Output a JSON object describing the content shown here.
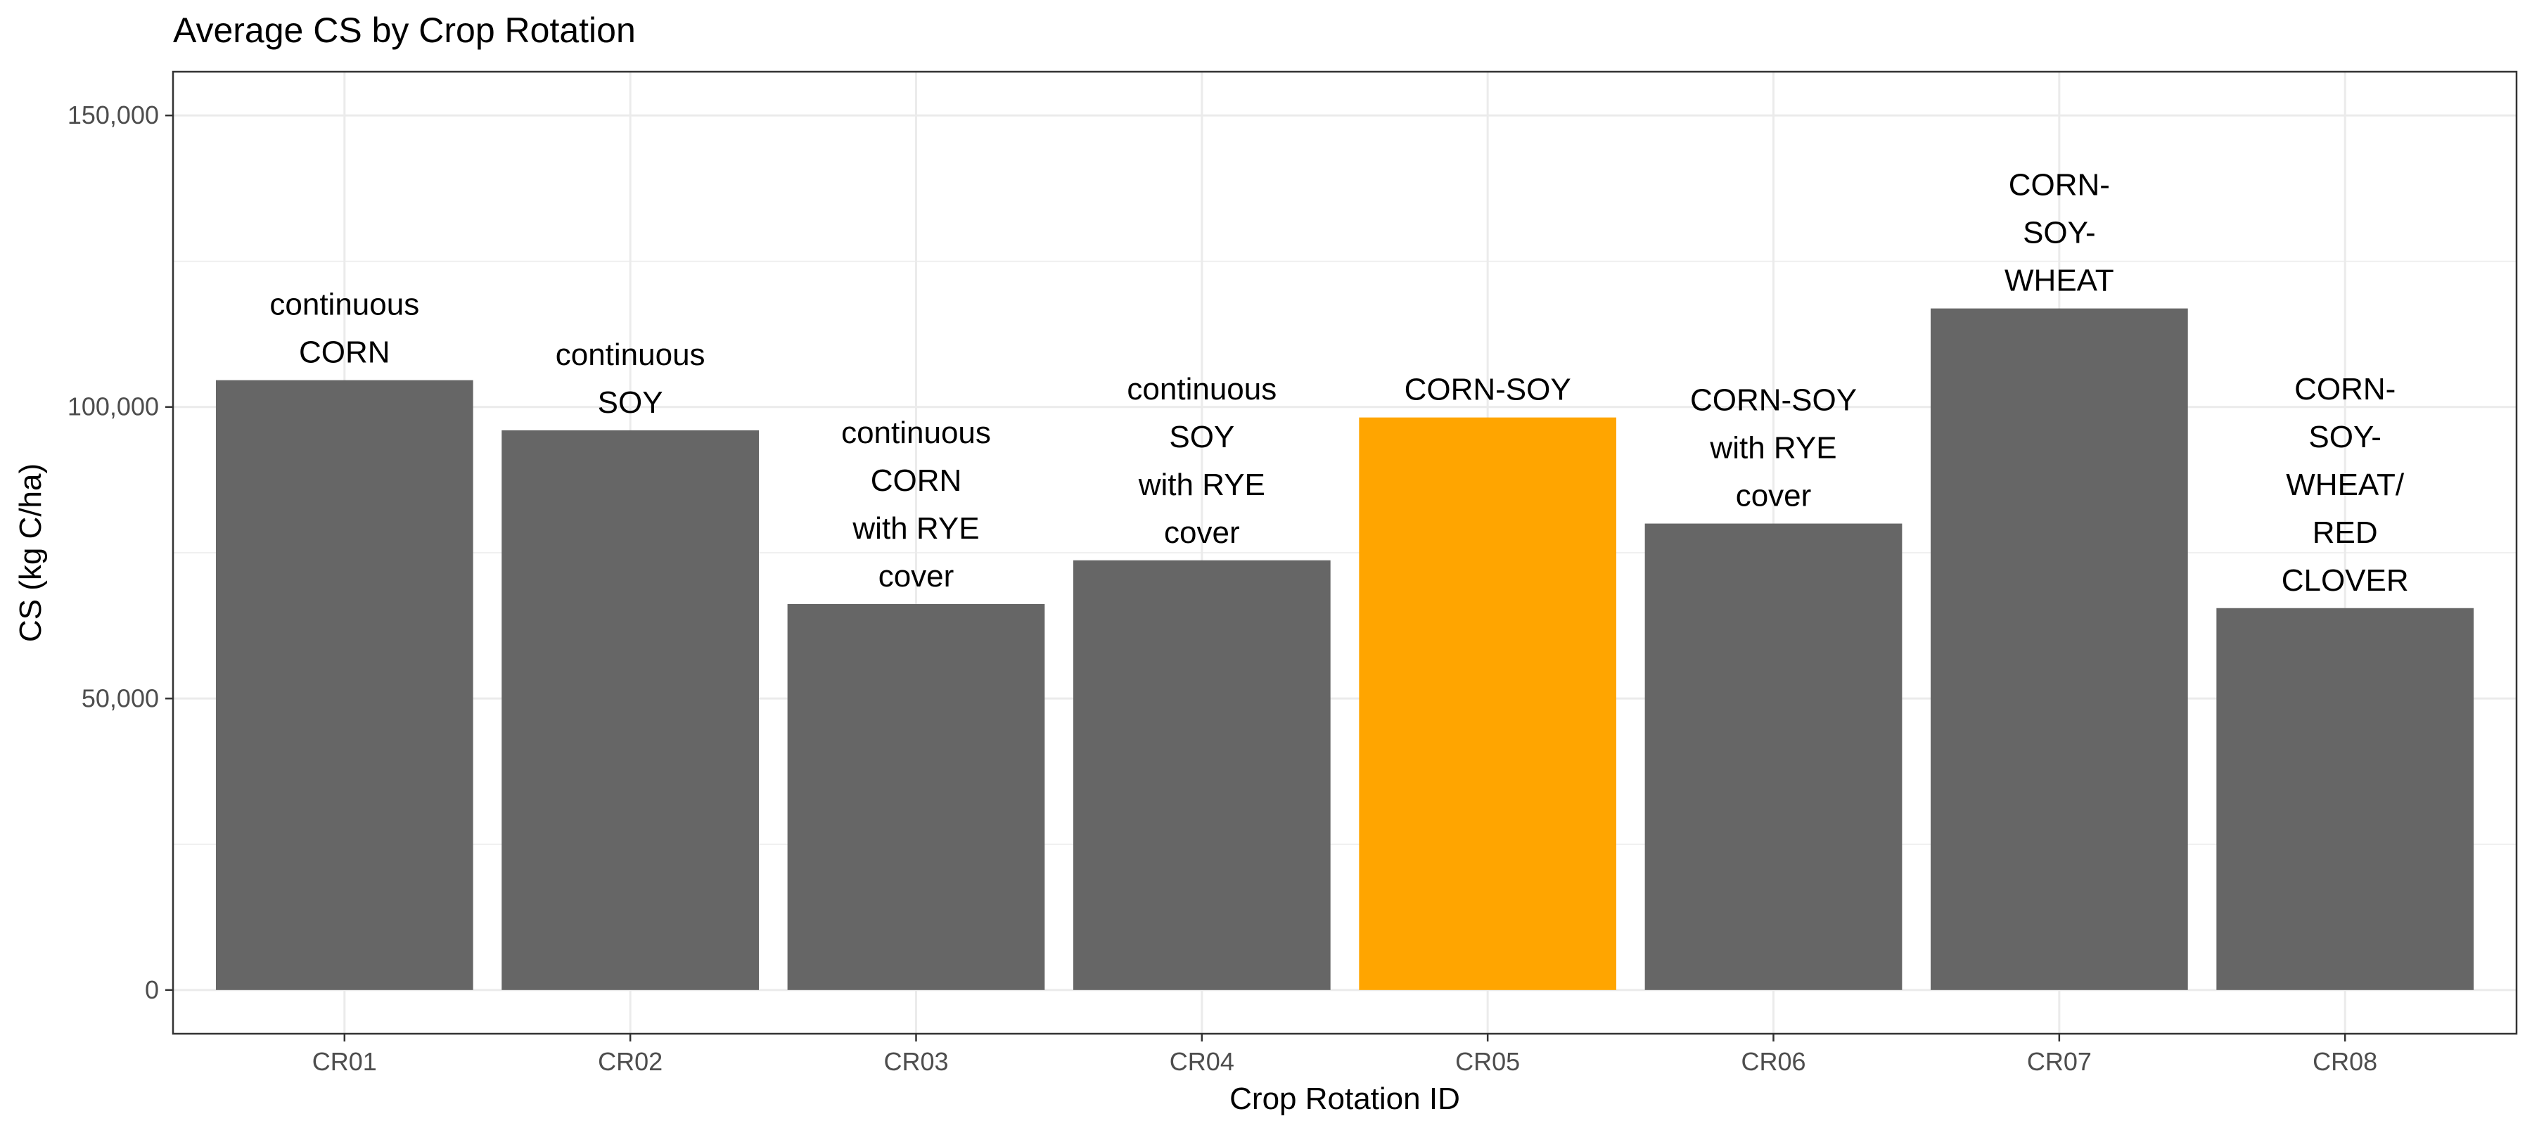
{
  "chart_data": {
    "type": "bar",
    "title": "Average CS by Crop Rotation",
    "xlabel": "Crop Rotation ID",
    "ylabel": "CS (kg C/ha)",
    "ylim": [
      -7500,
      157500
    ],
    "yticks": [
      0,
      50000,
      100000,
      150000
    ],
    "ytick_labels": [
      "0",
      "50,000",
      "100,000",
      "150,000"
    ],
    "categories": [
      "CR01",
      "CR02",
      "CR03",
      "CR04",
      "CR05",
      "CR06",
      "CR07",
      "CR08"
    ],
    "values": [
      104600,
      96000,
      66200,
      73700,
      98200,
      80000,
      116900,
      65500
    ],
    "bar_labels": [
      [
        "continuous",
        "CORN"
      ],
      [
        "continuous",
        "SOY"
      ],
      [
        "continuous",
        "CORN",
        "with RYE",
        "cover"
      ],
      [
        "continuous",
        "SOY",
        "with RYE",
        "cover"
      ],
      [
        "CORN-SOY"
      ],
      [
        "CORN-SOY",
        "with RYE",
        "cover"
      ],
      [
        "CORN-",
        "SOY-",
        "WHEAT"
      ],
      [
        "CORN-",
        "SOY-",
        "WHEAT/",
        "RED",
        "CLOVER"
      ]
    ],
    "highlight": "CR05",
    "colors": {
      "bar": "#666666",
      "highlight": "#FFA500",
      "grid": "#ebebeb",
      "panel_border": "#333333"
    },
    "grid": true,
    "legend": "none"
  }
}
